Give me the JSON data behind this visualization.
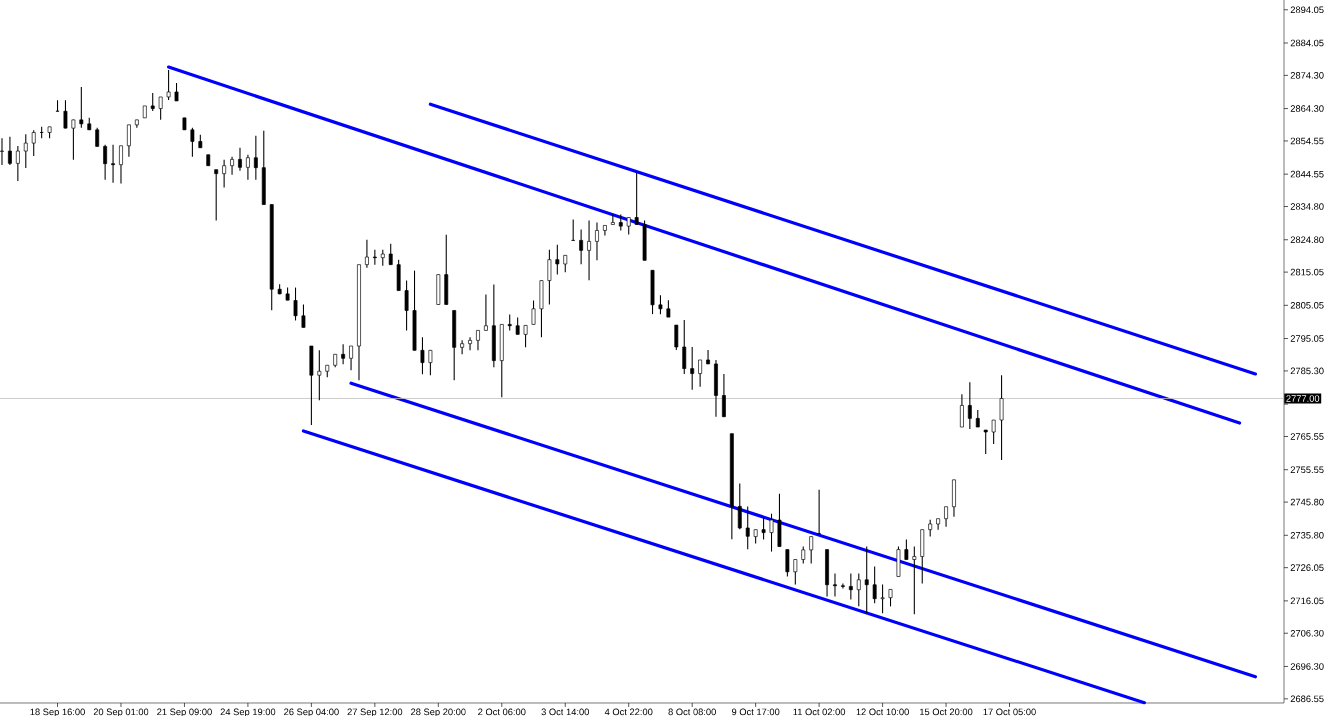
{
  "chart_data": {
    "type": "candlestick",
    "categories": [
      null,
      null,
      null,
      null,
      null,
      null,
      null,
      "18 Sep 16:00",
      null,
      null,
      null,
      null,
      null,
      null,
      null,
      "20 Sep 01:00",
      null,
      null,
      null,
      null,
      null,
      null,
      null,
      "21 Sep 09:00",
      null,
      null,
      null,
      null,
      null,
      null,
      null,
      "24 Sep 19:00",
      null,
      null,
      null,
      null,
      null,
      null,
      null,
      "26 Sep 04:00",
      null,
      null,
      null,
      null,
      null,
      null,
      null,
      "27 Sep 12:00",
      null,
      null,
      null,
      null,
      null,
      null,
      null,
      "28 Sep 20:00",
      null,
      null,
      null,
      null,
      null,
      null,
      null,
      "2 Oct 06:00",
      null,
      null,
      null,
      null,
      null,
      null,
      null,
      "3 Oct 14:00",
      null,
      null,
      null,
      null,
      null,
      null,
      null,
      "4 Oct 22:00",
      null,
      null,
      null,
      null,
      null,
      null,
      null,
      "8 Oct 08:00",
      null,
      null,
      null,
      null,
      null,
      null,
      null,
      "9 Oct 17:00",
      null,
      null,
      null,
      null,
      null,
      null,
      null,
      "11 Oct 02:00",
      null,
      null,
      null,
      null,
      null,
      null,
      null,
      "12 Oct 10:00",
      null,
      null,
      null,
      null,
      null,
      null,
      null,
      "15 Oct 20:00",
      null,
      null,
      null,
      null,
      null,
      null,
      null,
      "17 Oct 05:00",
      null,
      null,
      null,
      null,
      null,
      null,
      null,
      null,
      null,
      null,
      null,
      null,
      null,
      null,
      null,
      null,
      null,
      null,
      null,
      null,
      null,
      null,
      null,
      null,
      null,
      null,
      null,
      null,
      null,
      null,
      null,
      null,
      null,
      null
    ],
    "color": "#000000",
    "ohlc": [
      [
        2851.4,
        2855.4,
        2847.3,
        2851.5
      ],
      [
        2851.5,
        2855.8,
        2847.3,
        2847.8
      ],
      [
        2847.8,
        2853.0,
        2842.5,
        2851.5
      ],
      [
        2851.5,
        2856.6,
        2846.4,
        2853.9
      ],
      [
        2853.9,
        2857.8,
        2850.0,
        2857.1
      ],
      [
        2857.1,
        2858.8,
        2855.4,
        2857.1
      ],
      [
        2857.1,
        2858.8,
        2855.4,
        2858.8
      ],
      [
        2863.5,
        2866.8,
        2863.5,
        2863.5
      ],
      [
        2863.5,
        2866.8,
        2858.4,
        2858.4
      ],
      [
        2858.4,
        2860.9,
        2848.9,
        2860.9
      ],
      [
        2860.9,
        2870.8,
        2858.5,
        2859.7
      ],
      [
        2859.7,
        2861.5,
        2857.9,
        2857.9
      ],
      [
        2857.9,
        2858.5,
        2852.9,
        2852.9
      ],
      [
        2852.9,
        2853.4,
        2842.9,
        2847.7
      ],
      [
        2847.7,
        2853.4,
        2842.0,
        2847.4
      ],
      [
        2847.4,
        2853.1,
        2841.7,
        2853.1
      ],
      [
        2853.1,
        2859.4,
        2849.8,
        2859.4
      ],
      [
        2859.4,
        2860.9,
        2858.5,
        2860.9
      ],
      [
        2861.5,
        2865.1,
        2861.5,
        2865.1
      ],
      [
        2865.1,
        2869.0,
        2863.6,
        2864.3
      ],
      [
        2864.3,
        2867.8,
        2860.9,
        2867.8
      ],
      [
        2867.8,
        2875.9,
        2866.9,
        2869.3
      ],
      [
        2869.3,
        2872.0,
        2866.6,
        2866.6
      ],
      [
        2861.5,
        2861.5,
        2857.9,
        2857.9
      ],
      [
        2857.9,
        2858.5,
        2849.8,
        2854.4
      ],
      [
        2854.4,
        2856.4,
        2852.5,
        2852.5
      ],
      [
        2850.4,
        2850.4,
        2847.1,
        2847.1
      ],
      [
        2845.9,
        2845.9,
        2830.6,
        2844.7
      ],
      [
        2844.7,
        2848.9,
        2840.5,
        2847.1
      ],
      [
        2847.1,
        2849.8,
        2844.4,
        2849.0
      ],
      [
        2849.0,
        2852.5,
        2845.6,
        2846.6
      ],
      [
        2846.6,
        2850.4,
        2842.9,
        2849.5
      ],
      [
        2849.5,
        2856.1,
        2842.9,
        2846.5
      ],
      [
        2846.5,
        2857.6,
        2835.4,
        2835.4
      ],
      [
        2835.4,
        2835.4,
        2803.6,
        2809.9
      ],
      [
        2809.9,
        2811.4,
        2808.4,
        2808.5
      ],
      [
        2808.5,
        2810.4,
        2806.6,
        2806.6
      ],
      [
        2806.5,
        2810.4,
        2800.5,
        2801.9
      ],
      [
        2801.9,
        2805.3,
        2798.4,
        2798.4
      ],
      [
        2792.8,
        2792.8,
        2769.0,
        2784.0
      ],
      [
        2784.0,
        2791.5,
        2776.5,
        2785.2
      ],
      [
        2785.2,
        2787.0,
        2783.4,
        2787.0
      ],
      [
        2787.0,
        2790.3,
        2786.4,
        2790.3
      ],
      [
        2790.3,
        2793.3,
        2787.3,
        2789.1
      ],
      [
        2789.1,
        2792.8,
        2785.5,
        2792.8
      ],
      [
        2792.8,
        2817.3,
        2782.5,
        2817.3
      ],
      [
        2817.3,
        2824.8,
        2816.4,
        2819.6
      ],
      [
        2819.6,
        2821.8,
        2817.3,
        2819.4
      ],
      [
        2819.4,
        2821.8,
        2817.0,
        2820.5
      ],
      [
        2820.5,
        2823.6,
        2817.3,
        2817.3
      ],
      [
        2817.3,
        2818.8,
        2809.5,
        2809.5
      ],
      [
        2809.5,
        2812.5,
        2797.5,
        2803.5
      ],
      [
        2803.5,
        2815.5,
        2791.5,
        2791.5
      ],
      [
        2791.5,
        2795.4,
        2784.3,
        2787.8
      ],
      [
        2787.8,
        2791.5,
        2784.0,
        2791.5
      ],
      [
        2805.3,
        2814.3,
        2805.3,
        2814.3
      ],
      [
        2814.3,
        2826.3,
        2805.3,
        2805.3
      ],
      [
        2803.5,
        2803.5,
        2782.5,
        2792.4
      ],
      [
        2792.4,
        2794.5,
        2790.3,
        2793.5
      ],
      [
        2793.5,
        2795.4,
        2791.5,
        2794.5
      ],
      [
        2794.5,
        2797.5,
        2791.5,
        2797.5
      ],
      [
        2797.5,
        2808.3,
        2797.5,
        2798.9
      ],
      [
        2798.9,
        2811.3,
        2786.4,
        2788.4
      ],
      [
        2788.4,
        2799.3,
        2777.4,
        2799.3
      ],
      [
        2799.3,
        2802.3,
        2797.5,
        2798.9
      ],
      [
        2798.9,
        2801.4,
        2796.3,
        2796.3
      ],
      [
        2796.3,
        2799.0,
        2792.4,
        2799.0
      ],
      [
        2799.3,
        2806.5,
        2799.3,
        2804.0
      ],
      [
        2804.0,
        2812.5,
        2795.4,
        2812.5
      ],
      [
        2812.5,
        2821.8,
        2805.3,
        2818.8
      ],
      [
        2818.8,
        2823.3,
        2814.3,
        2817.5
      ],
      [
        2817.5,
        2820.1,
        2815.0,
        2820.1
      ],
      [
        2824.6,
        2830.9,
        2824.6,
        2824.6
      ],
      [
        2824.6,
        2827.9,
        2817.4,
        2821.6
      ],
      [
        2821.6,
        2830.6,
        2812.6,
        2824.3
      ],
      [
        2824.3,
        2830.0,
        2818.6,
        2827.6
      ],
      [
        2827.6,
        2829.1,
        2826.1,
        2829.1
      ],
      [
        2829.4,
        2832.4,
        2829.4,
        2830.0
      ],
      [
        2830.0,
        2832.4,
        2827.6,
        2828.9
      ],
      [
        2828.9,
        2831.5,
        2826.4,
        2831.5
      ],
      [
        2831.5,
        2845.0,
        2829.4,
        2829.4
      ],
      [
        2829.4,
        2830.6,
        2818.6,
        2818.6
      ],
      [
        2815.6,
        2815.6,
        2802.4,
        2805.2
      ],
      [
        2805.2,
        2808.1,
        2802.4,
        2804.0
      ],
      [
        2804.0,
        2806.6,
        2801.5,
        2801.5
      ],
      [
        2799.1,
        2799.1,
        2791.6,
        2792.5
      ],
      [
        2792.5,
        2800.6,
        2784.4,
        2786.0
      ],
      [
        2786.0,
        2792.5,
        2779.6,
        2784.5
      ],
      [
        2784.5,
        2788.6,
        2780.5,
        2788.6
      ],
      [
        2788.6,
        2791.6,
        2787.4,
        2787.4
      ],
      [
        2787.4,
        2788.6,
        2771.5,
        2777.9
      ],
      [
        2777.9,
        2784.4,
        2771.5,
        2771.5
      ],
      [
        2766.4,
        2766.4,
        2734.6,
        2744.5
      ],
      [
        2744.5,
        2751.4,
        2737.6,
        2738.0
      ],
      [
        2738.0,
        2744.5,
        2731.6,
        2735.5
      ],
      [
        2735.4,
        2737.5,
        2733.3,
        2737.5
      ],
      [
        2737.5,
        2741.4,
        2734.5,
        2736.6
      ],
      [
        2736.6,
        2742.3,
        2730.9,
        2740.4
      ],
      [
        2740.4,
        2748.3,
        2732.4,
        2732.4
      ],
      [
        2731.5,
        2731.5,
        2723.4,
        2724.8
      ],
      [
        2724.8,
        2728.5,
        2721.0,
        2728.5
      ],
      [
        2728.5,
        2732.4,
        2727.3,
        2731.4
      ],
      [
        2731.4,
        2735.4,
        2727.3,
        2735.4
      ],
      [
        2736.3,
        2749.5,
        2736.3,
        2736.3
      ],
      [
        2731.5,
        2731.5,
        2717.4,
        2720.9
      ],
      [
        2720.9,
        2724.3,
        2717.4,
        2720.6
      ],
      [
        2720.6,
        2721.3,
        2719.8,
        2720.4
      ],
      [
        2720.4,
        2724.3,
        2716.5,
        2719.4
      ],
      [
        2719.4,
        2724.3,
        2714.4,
        2722.4
      ],
      [
        2722.4,
        2732.4,
        2712.3,
        2720.9
      ],
      [
        2720.9,
        2726.4,
        2715.3,
        2716.7
      ],
      [
        2716.7,
        2721.0,
        2712.3,
        2717.0
      ],
      [
        2717.0,
        2719.5,
        2714.4,
        2719.5
      ],
      [
        2723.4,
        2732.4,
        2723.4,
        2731.5
      ],
      [
        2731.5,
        2734.5,
        2728.5,
        2728.5
      ],
      [
        2728.5,
        2732.4,
        2712.0,
        2729.4
      ],
      [
        2729.4,
        2737.5,
        2721.3,
        2737.5
      ],
      [
        2737.5,
        2740.5,
        2735.4,
        2739.2
      ],
      [
        2739.2,
        2740.8,
        2737.5,
        2740.8
      ],
      [
        2740.8,
        2744.4,
        2738.4,
        2744.4
      ],
      [
        2744.4,
        2752.5,
        2741.4,
        2752.5
      ],
      [
        2768.4,
        2778.3,
        2768.4,
        2774.9
      ],
      [
        2774.9,
        2781.9,
        2767.8,
        2771.0
      ],
      [
        2771.0,
        2773.5,
        2768.4,
        2768.4
      ],
      [
        2767.5,
        2767.5,
        2760.3,
        2766.9
      ],
      [
        2766.9,
        2770.5,
        2763.3,
        2770.5
      ],
      [
        2770.5,
        2784.0,
        2758.5,
        2777.0
      ],
      null,
      null,
      null,
      null,
      null,
      null,
      null,
      null,
      null,
      null,
      null,
      null,
      null,
      null,
      null,
      null,
      null,
      null,
      null,
      null,
      null,
      null,
      null,
      null,
      null,
      null,
      null,
      null,
      null,
      null,
      null,
      null,
      null,
      null,
      null
    ],
    "series": [
      {
        "type": "line",
        "color": "#0000ff",
        "values": [
          null,
          null,
          null,
          null,
          null,
          null,
          null,
          null,
          null,
          null,
          null,
          null,
          null,
          null,
          null,
          null,
          null,
          null,
          null,
          null,
          null,
          2876.8,
          null,
          null,
          null,
          null,
          null,
          null,
          null,
          null,
          null,
          null,
          null,
          null,
          null,
          null,
          null,
          null,
          null,
          null,
          null,
          null,
          null,
          null,
          null,
          null,
          null,
          null,
          null,
          null,
          null,
          null,
          null,
          null,
          null,
          null,
          null,
          null,
          null,
          null,
          null,
          null,
          null,
          null,
          null,
          null,
          null,
          null,
          null,
          null,
          null,
          null,
          null,
          null,
          null,
          null,
          null,
          null,
          null,
          null,
          null,
          null,
          null,
          null,
          null,
          null,
          null,
          null,
          null,
          null,
          null,
          null,
          null,
          null,
          null,
          null,
          null,
          null,
          null,
          null,
          null,
          null,
          null,
          null,
          null,
          null,
          null,
          null,
          null,
          null,
          null,
          null,
          null,
          null,
          null,
          null,
          null,
          null,
          null,
          null,
          null,
          null,
          null,
          null,
          null,
          null,
          null,
          null,
          null,
          null,
          null,
          null,
          null,
          null,
          null,
          null,
          null,
          null,
          null,
          null,
          null,
          null,
          null,
          null,
          null,
          null,
          null,
          null,
          null,
          null,
          null,
          null,
          null,
          null,
          null,
          null,
          2769.6,
          null,
          null,
          null,
          null,
          null
        ]
      },
      {
        "type": "line",
        "color": "#0000ff",
        "values": [
          null,
          null,
          null,
          null,
          null,
          null,
          null,
          null,
          null,
          null,
          null,
          null,
          null,
          null,
          null,
          null,
          null,
          null,
          null,
          null,
          null,
          null,
          null,
          null,
          null,
          null,
          null,
          null,
          null,
          null,
          null,
          null,
          null,
          null,
          null,
          null,
          null,
          null,
          null,
          null,
          null,
          null,
          null,
          null,
          null,
          null,
          null,
          null,
          null,
          null,
          null,
          null,
          null,
          null,
          2865.6,
          null,
          null,
          null,
          null,
          null,
          null,
          null,
          null,
          null,
          null,
          null,
          null,
          null,
          null,
          null,
          null,
          null,
          null,
          null,
          null,
          null,
          null,
          null,
          null,
          null,
          null,
          null,
          null,
          null,
          null,
          null,
          null,
          null,
          null,
          null,
          null,
          null,
          null,
          null,
          null,
          null,
          null,
          null,
          null,
          null,
          null,
          null,
          null,
          null,
          null,
          null,
          null,
          null,
          null,
          null,
          null,
          null,
          null,
          null,
          null,
          null,
          null,
          null,
          null,
          null,
          null,
          null,
          null,
          null,
          null,
          null,
          null,
          null,
          null,
          null,
          null,
          null,
          null,
          null,
          null,
          null,
          null,
          null,
          null,
          null,
          null,
          null,
          null,
          null,
          null,
          null,
          null,
          null,
          null,
          null,
          null,
          null,
          null,
          null,
          null,
          null,
          null,
          null,
          2784.4,
          null,
          null,
          null
        ]
      },
      {
        "type": "line",
        "color": "#0000ff",
        "values": [
          null,
          null,
          null,
          null,
          null,
          null,
          null,
          null,
          null,
          null,
          null,
          null,
          null,
          null,
          null,
          null,
          null,
          null,
          null,
          null,
          null,
          null,
          null,
          null,
          null,
          null,
          null,
          null,
          null,
          null,
          null,
          null,
          null,
          null,
          null,
          null,
          null,
          null,
          null,
          null,
          null,
          null,
          null,
          null,
          2781.6,
          null,
          null,
          null,
          null,
          null,
          null,
          null,
          null,
          null,
          null,
          null,
          null,
          null,
          null,
          null,
          null,
          null,
          null,
          null,
          null,
          null,
          null,
          null,
          null,
          null,
          null,
          null,
          null,
          null,
          null,
          null,
          null,
          null,
          null,
          null,
          null,
          null,
          null,
          null,
          null,
          null,
          null,
          null,
          null,
          null,
          null,
          null,
          null,
          null,
          null,
          null,
          null,
          null,
          null,
          null,
          null,
          null,
          null,
          null,
          null,
          null,
          null,
          null,
          null,
          null,
          null,
          null,
          null,
          null,
          null,
          null,
          null,
          null,
          null,
          null,
          null,
          null,
          null,
          null,
          null,
          null,
          null,
          null,
          null,
          null,
          null,
          null,
          null,
          null,
          null,
          null,
          null,
          null,
          null,
          null,
          null,
          null,
          null,
          null,
          null,
          null,
          null,
          null,
          null,
          null,
          null,
          null,
          null,
          null,
          null,
          null,
          null,
          null,
          2693.2,
          null,
          null,
          null
        ]
      },
      {
        "type": "line",
        "color": "#0000ff",
        "values": [
          null,
          null,
          null,
          null,
          null,
          null,
          null,
          null,
          null,
          null,
          null,
          null,
          null,
          null,
          null,
          null,
          null,
          null,
          null,
          null,
          null,
          null,
          null,
          null,
          null,
          null,
          null,
          null,
          null,
          null,
          null,
          null,
          null,
          null,
          null,
          null,
          null,
          null,
          2767.2,
          null,
          null,
          null,
          null,
          null,
          null,
          null,
          null,
          null,
          null,
          null,
          null,
          null,
          null,
          null,
          null,
          null,
          null,
          null,
          null,
          null,
          null,
          null,
          null,
          null,
          null,
          null,
          null,
          null,
          null,
          null,
          null,
          null,
          null,
          null,
          null,
          null,
          null,
          null,
          null,
          null,
          null,
          null,
          null,
          null,
          null,
          null,
          null,
          null,
          null,
          null,
          null,
          null,
          null,
          null,
          null,
          null,
          null,
          null,
          null,
          null,
          null,
          null,
          null,
          null,
          null,
          null,
          null,
          null,
          null,
          null,
          null,
          null,
          null,
          null,
          null,
          null,
          null,
          null,
          null,
          null,
          null,
          null,
          null,
          null,
          null,
          null,
          null,
          null,
          null,
          null,
          null,
          null,
          null,
          null,
          null,
          null,
          null,
          null,
          null,
          null,
          null,
          null,
          null,
          null,
          2685.4,
          null,
          null,
          null,
          null,
          null,
          null,
          null,
          null,
          null,
          null,
          null,
          null,
          null,
          null,
          null,
          null,
          null
        ]
      }
    ],
    "ylim": [
      2685.3,
      2897.0
    ],
    "yticks": [
      {
        "value": 2686.55,
        "label": "2686.55"
      },
      {
        "value": 2696.3,
        "label": "2696.30"
      },
      {
        "value": 2706.3,
        "label": "2706.30"
      },
      {
        "value": 2716.05,
        "label": "2716.05"
      },
      {
        "value": 2726.05,
        "label": "2726.05"
      },
      {
        "value": 2735.8,
        "label": "2735.80"
      },
      {
        "value": 2745.8,
        "label": "2745.80"
      },
      {
        "value": 2755.55,
        "label": "2755.55"
      },
      {
        "value": 2765.55,
        "label": "2765.55"
      },
      {
        "value": 2775.3,
        "label": null
      },
      {
        "value": 2785.3,
        "label": "2785.30"
      },
      {
        "value": 2795.05,
        "label": "2795.05"
      },
      {
        "value": 2805.05,
        "label": "2805.05"
      },
      {
        "value": 2815.05,
        "label": "2815.05"
      },
      {
        "value": 2824.8,
        "label": "2824.80"
      },
      {
        "value": 2834.8,
        "label": "2834.80"
      },
      {
        "value": 2844.55,
        "label": "2844.55"
      },
      {
        "value": 2854.55,
        "label": "2854.55"
      },
      {
        "value": 2864.3,
        "label": "2864.30"
      },
      {
        "value": 2874.3,
        "label": "2874.30"
      },
      {
        "value": 2884.05,
        "label": "2884.05"
      },
      {
        "value": 2894.05,
        "label": "2894.05"
      }
    ],
    "ref_lines": [
      {
        "axis": "y",
        "value": 2777.0,
        "label": "2777.00",
        "color": "#c0c0c0"
      }
    ]
  }
}
